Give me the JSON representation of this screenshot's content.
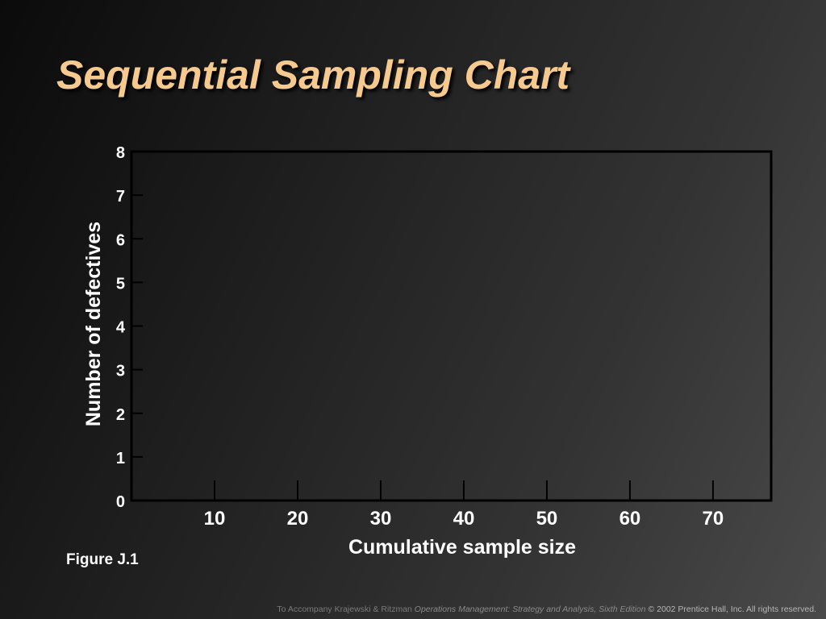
{
  "slide": {
    "title": "Sequential Sampling Chart",
    "figure_label": "Figure J.1",
    "footer": {
      "prefix": "To Accompany Krajewski & Ritzman ",
      "book": "Operations Management: Strategy and Analysis, Sixth Edition",
      "suffix": " © 2002 Prentice Hall, Inc. All rights reserved."
    },
    "colors": {
      "title": "#f6c98f",
      "text": "#ffffff",
      "axes": "#000000",
      "background_dark": "#0b0b0b",
      "background_light": "#4a4a4a"
    }
  },
  "chart_data": {
    "type": "line",
    "title": "",
    "xlabel": "Cumulative sample size",
    "ylabel": "Number of defectives",
    "x_ticks": [
      10,
      20,
      30,
      40,
      50,
      60,
      70
    ],
    "y_ticks": [
      0,
      1,
      2,
      3,
      4,
      5,
      6,
      7,
      8
    ],
    "xlim": [
      0,
      77
    ],
    "ylim": [
      0,
      8
    ],
    "series": [],
    "grid": false,
    "legend": "none"
  }
}
